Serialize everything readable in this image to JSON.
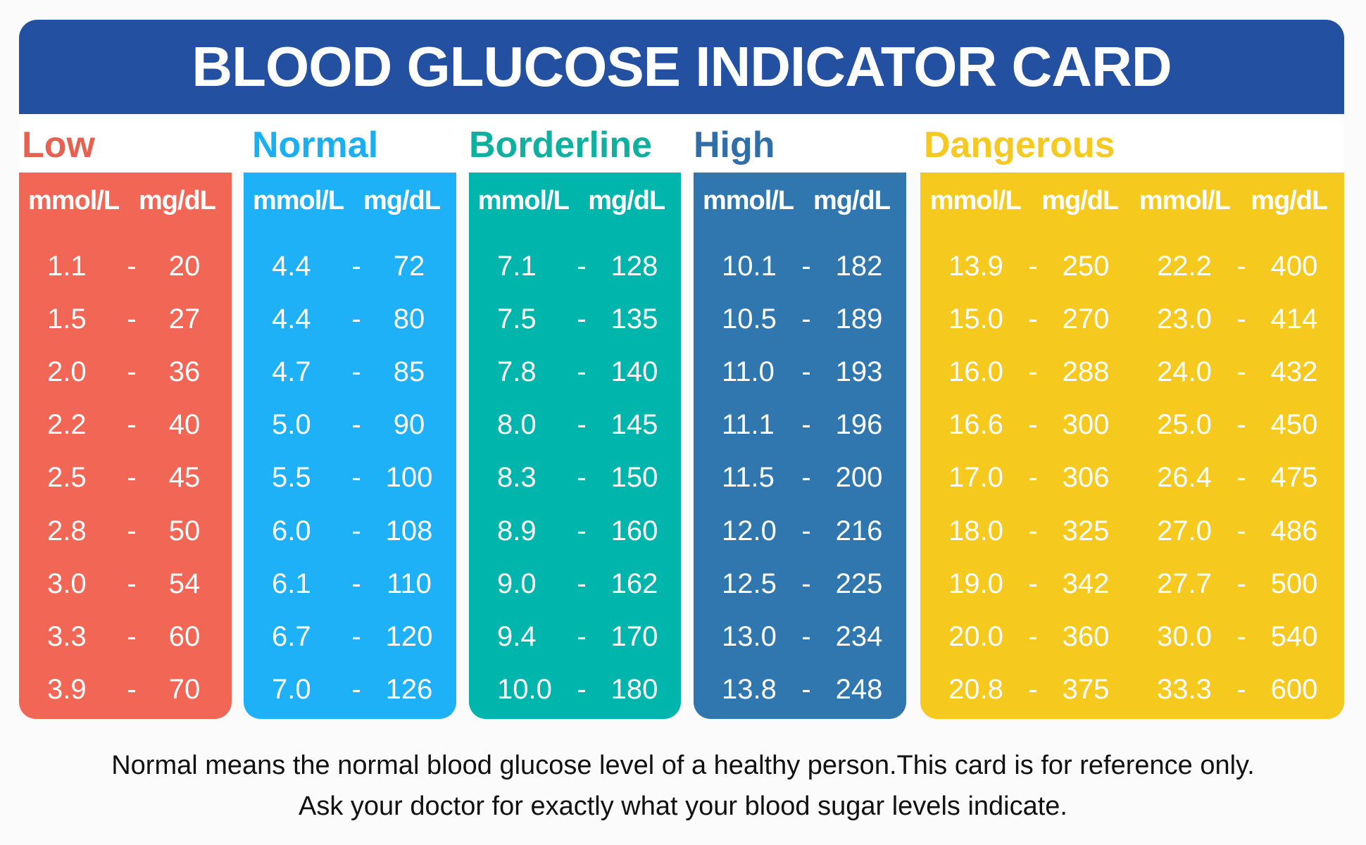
{
  "title": "BLOOD GLUCOSE INDICATOR CARD",
  "colors": {
    "header": "#2350a0",
    "low": "#f26655",
    "normal": "#1eb1f7",
    "borderline": "#00b5ab",
    "high": "#2f77ae",
    "dangerous": "#f6c91e"
  },
  "categories": [
    {
      "name": "Low",
      "label_color": "#e8604f",
      "units": [
        "mmol/L",
        "mg/dL"
      ],
      "rows": [
        [
          "1.1",
          "-",
          "20"
        ],
        [
          "1.5",
          "-",
          "27"
        ],
        [
          "2.0",
          "-",
          "36"
        ],
        [
          "2.2",
          "-",
          "40"
        ],
        [
          "2.5",
          "-",
          "45"
        ],
        [
          "2.8",
          "-",
          "50"
        ],
        [
          "3.0",
          "-",
          "54"
        ],
        [
          "3.3",
          "-",
          "60"
        ],
        [
          "3.9",
          "-",
          "70"
        ]
      ]
    },
    {
      "name": "Normal",
      "label_color": "#1aaff0",
      "units": [
        "mmol/L",
        "mg/dL"
      ],
      "rows": [
        [
          "4.4",
          "-",
          "72"
        ],
        [
          "4.4",
          "-",
          "80"
        ],
        [
          "4.7",
          "-",
          "85"
        ],
        [
          "5.0",
          "-",
          "90"
        ],
        [
          "5.5",
          "-",
          "100"
        ],
        [
          "6.0",
          "-",
          "108"
        ],
        [
          "6.1",
          "-",
          "110"
        ],
        [
          "6.7",
          "-",
          "120"
        ],
        [
          "7.0",
          "-",
          "126"
        ]
      ]
    },
    {
      "name": "Borderline",
      "label_color": "#0fb09f",
      "units": [
        "mmol/L",
        "mg/dL"
      ],
      "rows": [
        [
          "7.1",
          "-",
          "128"
        ],
        [
          "7.5",
          "-",
          "135"
        ],
        [
          "7.8",
          "-",
          "140"
        ],
        [
          "8.0",
          "-",
          "145"
        ],
        [
          "8.3",
          "-",
          "150"
        ],
        [
          "8.9",
          "-",
          "160"
        ],
        [
          "9.0",
          "-",
          "162"
        ],
        [
          "9.4",
          "-",
          "170"
        ],
        [
          "10.0",
          "-",
          "180"
        ]
      ]
    },
    {
      "name": "High",
      "label_color": "#2f6ea8",
      "units": [
        "mmol/L",
        "mg/dL"
      ],
      "rows": [
        [
          "10.1",
          "-",
          "182"
        ],
        [
          "10.5",
          "-",
          "189"
        ],
        [
          "11.0",
          "-",
          "193"
        ],
        [
          "11.1",
          "-",
          "196"
        ],
        [
          "11.5",
          "-",
          "200"
        ],
        [
          "12.0",
          "-",
          "216"
        ],
        [
          "12.5",
          "-",
          "225"
        ],
        [
          "13.0",
          "-",
          "234"
        ],
        [
          "13.8",
          "-",
          "248"
        ]
      ]
    },
    {
      "name": "Dangerous",
      "label_color": "#f5c921",
      "units": [
        "mmol/L",
        "mg/dL",
        "mmol/L",
        "mg/dL"
      ],
      "rows": [
        [
          "13.9",
          "-",
          "250",
          "22.2",
          "-",
          "400"
        ],
        [
          "15.0",
          "-",
          "270",
          "23.0",
          "-",
          "414"
        ],
        [
          "16.0",
          "-",
          "288",
          "24.0",
          "-",
          "432"
        ],
        [
          "16.6",
          "-",
          "300",
          "25.0",
          "-",
          "450"
        ],
        [
          "17.0",
          "-",
          "306",
          "26.4",
          "-",
          "475"
        ],
        [
          "18.0",
          "-",
          "325",
          "27.0",
          "-",
          "486"
        ],
        [
          "19.0",
          "-",
          "342",
          "27.7",
          "-",
          "500"
        ],
        [
          "20.0",
          "-",
          "360",
          "30.0",
          "-",
          "540"
        ],
        [
          "20.8",
          "-",
          "375",
          "33.3",
          "-",
          "600"
        ]
      ]
    }
  ],
  "footer": {
    "line1": "Normal means the normal blood glucose level of a healthy person.This card is for reference only.",
    "line2": "Ask your doctor for exactly what your blood sugar levels indicate."
  }
}
